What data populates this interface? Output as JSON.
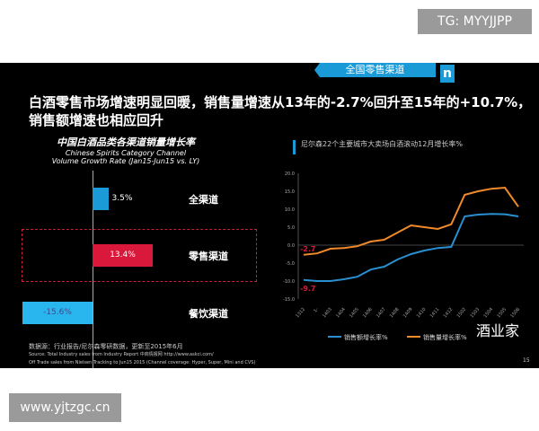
{
  "overlay": {
    "tg": "TG: MYYJJPP",
    "site": "www.yjtzgc.cn",
    "watermark": "酒业家"
  },
  "slide": {
    "tag": "全国零售渠道",
    "logo": "n",
    "headline": "白酒零售市场增速明显回暖，销售量增速从13年的-2.7%回升至15年的+10.7%，销售额增速也相应回升",
    "source_line1": "数据源：行业报告/尼尔森零研数据，更新至2015年6月",
    "source_line2": "Source: Total Industry sales from Industry Report 中商情报网 http://www.askci.com/",
    "source_line3": "Off Trade sales from Nielsen Tracking to Jun15 2015 (Channel coverage: Hyper, Super, Mini and CVS)",
    "page": "15"
  },
  "chart_data": [
    {
      "type": "bar",
      "orientation": "horizontal",
      "title": "中国白酒品类各渠道销量增长率",
      "subtitle1": "Chinese Spirits Category Channel",
      "subtitle2": "Volume Growth Rate (Jan15-Jun15 vs. LY)",
      "categories": [
        "全渠道",
        "零售渠道",
        "餐饮渠道"
      ],
      "values": [
        3.5,
        13.4,
        -15.6
      ],
      "labels": [
        "3.5%",
        "13.4%",
        "-15.6%"
      ],
      "colors": [
        "#1a9ad6",
        "#d9183b",
        "#29b6ee"
      ],
      "highlight": "零售渠道"
    },
    {
      "type": "line",
      "title": "尼尔森22个主要城市大卖场白酒滚动12月增长率%",
      "x": [
        "1312",
        "1-",
        "1403",
        "1404",
        "1405",
        "1406",
        "1407",
        "1408",
        "1409",
        "1410",
        "1411",
        "1412",
        "1502",
        "1503",
        "1504",
        "1505",
        "1506"
      ],
      "yticks": [
        "20.0",
        "15.0",
        "10.0",
        "5.0",
        "0.0",
        "-5.0",
        "-10.0",
        "-15.0"
      ],
      "ylim": [
        -15,
        20
      ],
      "series": [
        {
          "name": "销售额增长率%",
          "color": "#2a8fd0",
          "values": [
            -9.7,
            -10,
            -10,
            -9.5,
            -8.8,
            -6.8,
            -6,
            -4,
            -2.5,
            -1.5,
            -0.8,
            -0.5,
            8,
            8.5,
            8.7,
            8.6,
            8
          ]
        },
        {
          "name": "销售量增长率%",
          "color": "#f08a2a",
          "values": [
            -2.7,
            -2.3,
            -1,
            -0.8,
            -0.3,
            1,
            1.5,
            3.5,
            5.5,
            5,
            4.5,
            5.8,
            14,
            15,
            15.7,
            16,
            10.7
          ]
        }
      ],
      "annotations": [
        "-2.7",
        "-9.7"
      ]
    }
  ]
}
